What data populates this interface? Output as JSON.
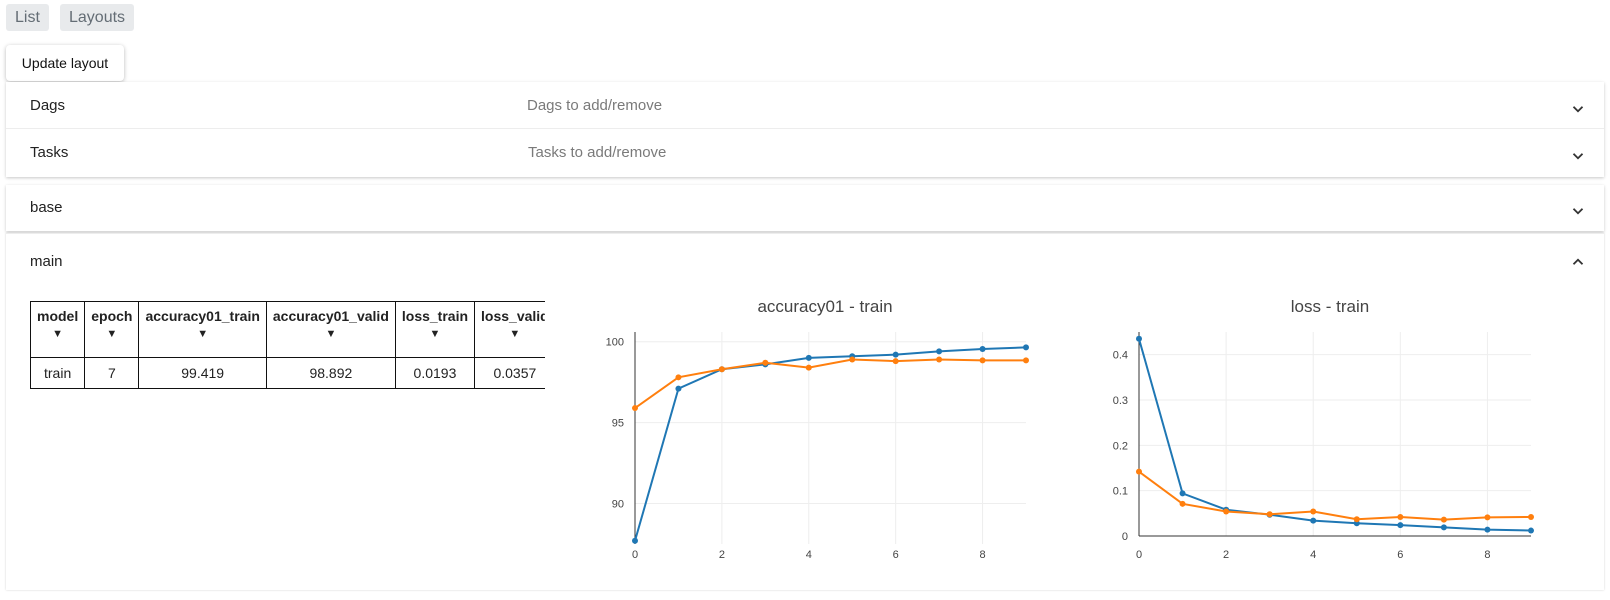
{
  "topnav": {
    "list_label": "List",
    "layouts_label": "Layouts"
  },
  "update_button": "Update layout",
  "filters": {
    "dags_label": "Dags",
    "dags_placeholder": "Dags to add/remove",
    "tasks_label": "Tasks",
    "tasks_placeholder": "Tasks to add/remove"
  },
  "sections": {
    "base_label": "base",
    "main_label": "main"
  },
  "table": {
    "headers": [
      "model",
      "epoch",
      "accuracy01_train",
      "accuracy01_valid",
      "loss_train",
      "loss_valid"
    ],
    "sort_glyph": "▼",
    "rows": [
      [
        "train",
        "7",
        "99.419",
        "98.892",
        "0.0193",
        "0.0357"
      ]
    ]
  },
  "colors": {
    "series_blue": "#1f77b4",
    "series_orange": "#ff7f0e"
  },
  "chart_data": [
    {
      "type": "line",
      "title": "accuracy01 - train",
      "xlabel": "",
      "ylabel": "",
      "xlim": [
        0,
        9
      ],
      "ylim": [
        87.5,
        100.6
      ],
      "xticks": [
        0,
        2,
        4,
        6,
        8
      ],
      "yticks": [
        90,
        95,
        100
      ],
      "grid": true,
      "x": [
        0,
        1,
        2,
        3,
        4,
        5,
        6,
        7,
        8,
        9
      ],
      "series": [
        {
          "color": "#1f77b4",
          "values": [
            87.7,
            97.1,
            98.3,
            98.6,
            99.0,
            99.1,
            99.2,
            99.4,
            99.55,
            99.65
          ]
        },
        {
          "color": "#ff7f0e",
          "values": [
            95.9,
            97.8,
            98.3,
            98.7,
            98.4,
            98.9,
            98.8,
            98.9,
            98.85,
            98.85
          ]
        }
      ]
    },
    {
      "type": "line",
      "title": "loss - train",
      "xlabel": "",
      "ylabel": "",
      "xlim": [
        0,
        9
      ],
      "ylim": [
        0,
        0.45
      ],
      "xticks": [
        0,
        2,
        4,
        6,
        8
      ],
      "yticks": [
        0,
        0.1,
        0.2,
        0.3,
        0.4
      ],
      "ytick_labels": [
        "0",
        "0.1",
        "0.2",
        "0.3",
        "0.4"
      ],
      "grid": true,
      "x": [
        0,
        1,
        2,
        3,
        4,
        5,
        6,
        7,
        8,
        9
      ],
      "series": [
        {
          "color": "#1f77b4",
          "values": [
            0.435,
            0.094,
            0.058,
            0.047,
            0.034,
            0.028,
            0.024,
            0.019,
            0.014,
            0.012
          ]
        },
        {
          "color": "#ff7f0e",
          "values": [
            0.142,
            0.071,
            0.054,
            0.048,
            0.054,
            0.037,
            0.042,
            0.036,
            0.041,
            0.042
          ]
        }
      ]
    }
  ]
}
